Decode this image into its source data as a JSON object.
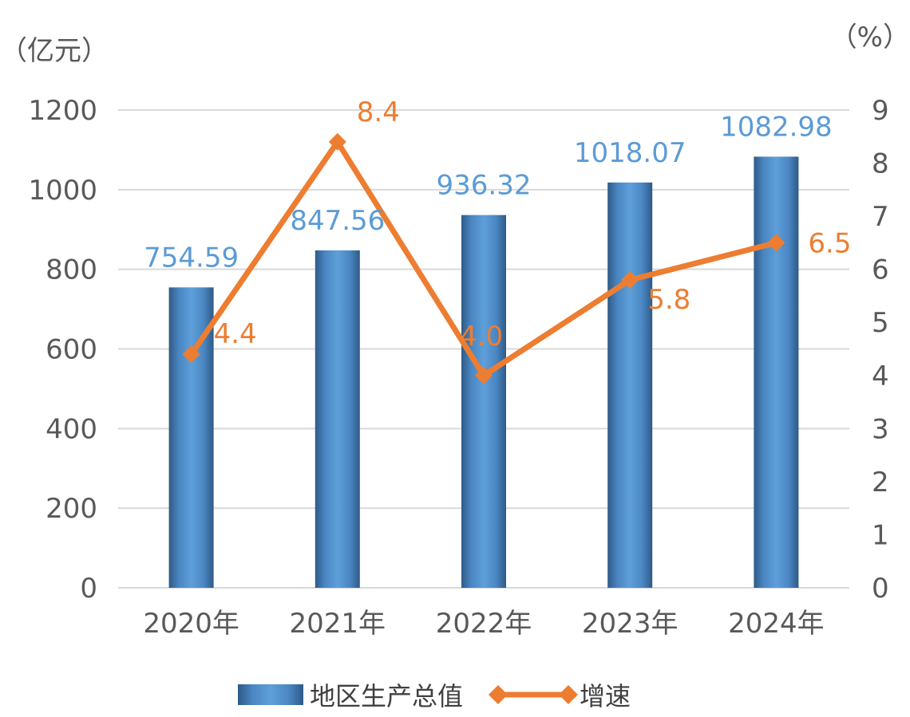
{
  "chart_data": {
    "type": "bar+line",
    "categories": [
      "2020年",
      "2021年",
      "2022年",
      "2023年",
      "2024年"
    ],
    "series": [
      {
        "name": "地区生产总值",
        "type": "bar",
        "axis": "left",
        "values": [
          754.59,
          847.56,
          936.32,
          1018.07,
          1082.98
        ],
        "labels": [
          "754.59",
          "847.56",
          "936.32",
          "1018.07",
          "1082.98"
        ],
        "color": "#5B9BD5"
      },
      {
        "name": "增速",
        "type": "line",
        "axis": "right",
        "values": [
          4.4,
          8.4,
          4.0,
          5.8,
          6.5
        ],
        "labels": [
          "4.4",
          "8.4",
          "4.0",
          "5.8",
          "6.5"
        ],
        "color": "#ED7D31"
      }
    ],
    "y_left": {
      "unit": "（亿元）",
      "min": 0,
      "max": 1200,
      "ticks": [
        "0",
        "200",
        "400",
        "600",
        "800",
        "1000",
        "1200"
      ]
    },
    "y_right": {
      "unit": "（%）",
      "min": 0,
      "max": 9,
      "ticks": [
        "0",
        "1",
        "2",
        "3",
        "4",
        "5",
        "6",
        "7",
        "8",
        "9"
      ]
    },
    "grid": true,
    "legend_position": "bottom"
  }
}
